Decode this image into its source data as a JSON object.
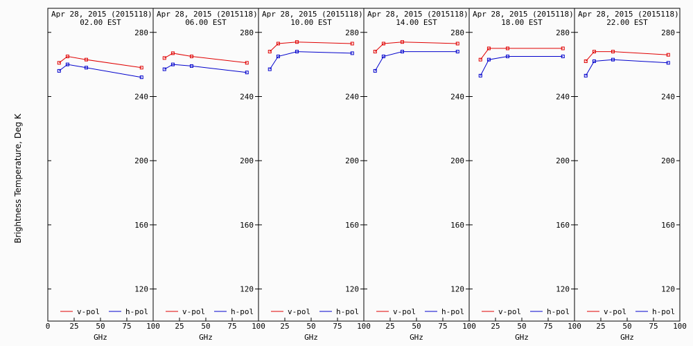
{
  "chart_data": {
    "type": "line",
    "ylabel": "Brightness Temperature, Deg K",
    "xlabel": "GHz",
    "ylim": [
      100,
      295
    ],
    "yticks": [
      120,
      160,
      200,
      240,
      280
    ],
    "xlim": [
      0,
      100
    ],
    "xticks": [
      0,
      25,
      50,
      75,
      100
    ],
    "xtick_labels": [
      "0",
      "25",
      "50",
      "75",
      "100"
    ],
    "legend_placement": "bottom",
    "series_colors": {
      "v-pol": "#e00000",
      "h-pol": "#0000cc"
    },
    "panels": [
      {
        "title": "Apr 28, 2015 (2015118)",
        "subtitle": "02.00 EST",
        "series": [
          {
            "name": "v-pol",
            "x": [
              10.7,
              18.7,
              36.5,
              89.0
            ],
            "values": [
              261,
              265,
              263,
              258
            ]
          },
          {
            "name": "h-pol",
            "x": [
              10.7,
              18.7,
              36.5,
              89.0
            ],
            "values": [
              256,
              260,
              258,
              252
            ]
          }
        ]
      },
      {
        "title": "Apr 28, 2015 (2015118)",
        "subtitle": "06.00 EST",
        "series": [
          {
            "name": "v-pol",
            "x": [
              10.7,
              18.7,
              36.5,
              89.0
            ],
            "values": [
              264,
              267,
              265,
              261
            ]
          },
          {
            "name": "h-pol",
            "x": [
              10.7,
              18.7,
              36.5,
              89.0
            ],
            "values": [
              257,
              260,
              259,
              255
            ]
          }
        ]
      },
      {
        "title": "Apr 28, 2015 (2015118)",
        "subtitle": "10.00 EST",
        "series": [
          {
            "name": "v-pol",
            "x": [
              10.7,
              18.7,
              36.5,
              89.0
            ],
            "values": [
              268,
              273,
              274,
              273
            ]
          },
          {
            "name": "h-pol",
            "x": [
              10.7,
              18.7,
              36.5,
              89.0
            ],
            "values": [
              257,
              265,
              268,
              267
            ]
          }
        ]
      },
      {
        "title": "Apr 28, 2015 (2015118)",
        "subtitle": "14.00 EST",
        "series": [
          {
            "name": "v-pol",
            "x": [
              10.7,
              18.7,
              36.5,
              89.0
            ],
            "values": [
              268,
              273,
              274,
              273
            ]
          },
          {
            "name": "h-pol",
            "x": [
              10.7,
              18.7,
              36.5,
              89.0
            ],
            "values": [
              256,
              265,
              268,
              268
            ]
          }
        ]
      },
      {
        "title": "Apr 28, 2015 (2015118)",
        "subtitle": "18.00 EST",
        "series": [
          {
            "name": "v-pol",
            "x": [
              10.7,
              18.7,
              36.5,
              89.0
            ],
            "values": [
              263,
              270,
              270,
              270
            ]
          },
          {
            "name": "h-pol",
            "x": [
              10.7,
              18.7,
              36.5,
              89.0
            ],
            "values": [
              253,
              263,
              265,
              265
            ]
          }
        ]
      },
      {
        "title": "Apr 28, 2015 (2015118)",
        "subtitle": "22.00 EST",
        "series": [
          {
            "name": "v-pol",
            "x": [
              10.7,
              18.7,
              36.5,
              89.0
            ],
            "values": [
              262,
              268,
              268,
              266
            ]
          },
          {
            "name": "h-pol",
            "x": [
              10.7,
              18.7,
              36.5,
              89.0
            ],
            "values": [
              253,
              262,
              263,
              261
            ]
          }
        ]
      }
    ]
  }
}
